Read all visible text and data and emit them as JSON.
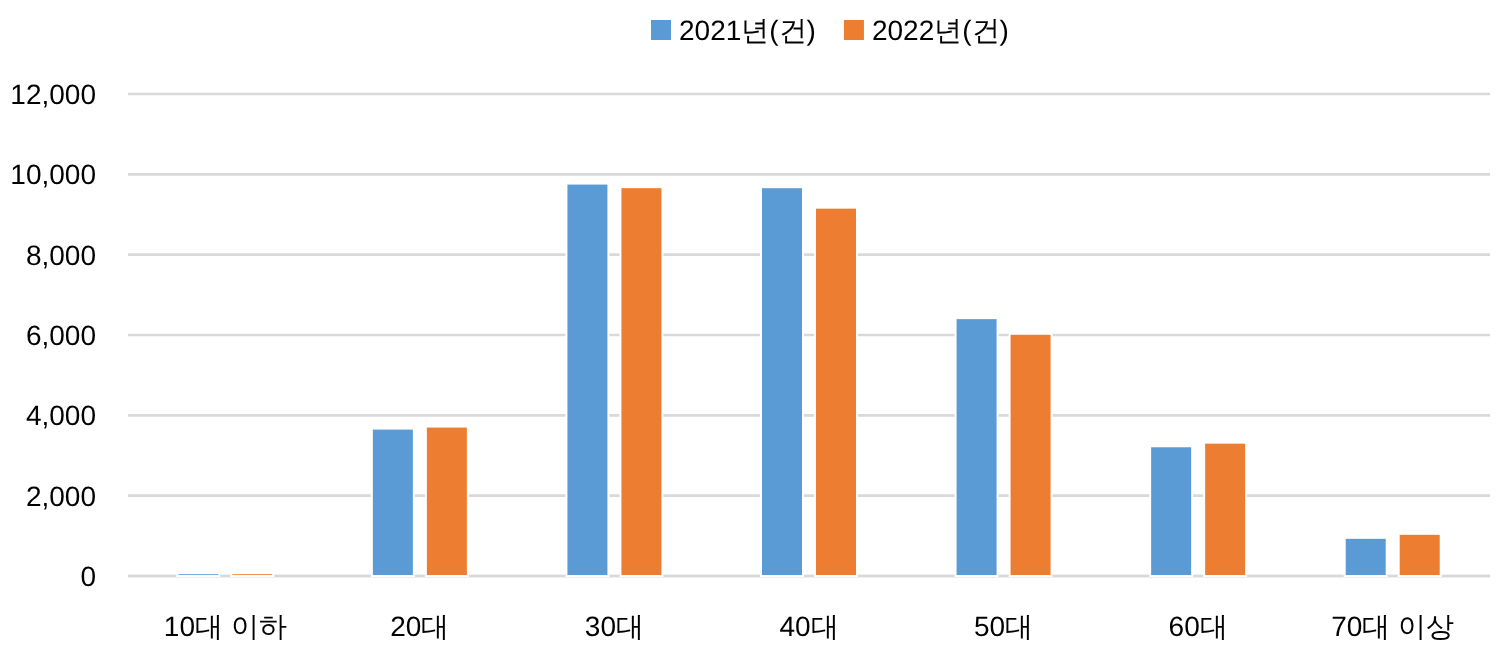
{
  "chart_data": {
    "type": "bar",
    "categories": [
      "10대 이하",
      "20대",
      "30대",
      "40대",
      "50대",
      "60대",
      "70대 이상"
    ],
    "series": [
      {
        "name": "2021년(건)",
        "color": "#5b9bd5",
        "values": [
          70,
          3670,
          9770,
          9680,
          6420,
          3230,
          950
        ]
      },
      {
        "name": "2022년(건)",
        "color": "#ed7d31",
        "values": [
          70,
          3720,
          9680,
          9170,
          6030,
          3320,
          1050
        ]
      }
    ],
    "ylim": [
      0,
      12000
    ],
    "yticks": [
      {
        "value": 0,
        "label": "0"
      },
      {
        "value": 2000,
        "label": "2,000"
      },
      {
        "value": 4000,
        "label": "4,000"
      },
      {
        "value": 6000,
        "label": "6,000"
      },
      {
        "value": 8000,
        "label": "8,000"
      },
      {
        "value": 10000,
        "label": "10,000"
      },
      {
        "value": 12000,
        "label": "12,000"
      }
    ],
    "grid": "y",
    "legend": "top"
  }
}
